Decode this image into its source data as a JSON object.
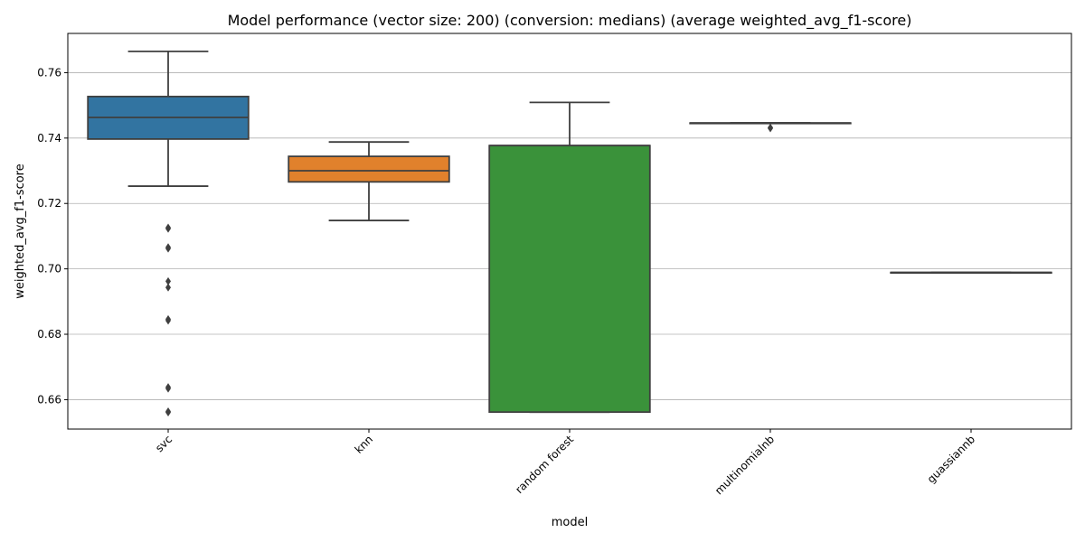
{
  "chart_data": {
    "type": "box",
    "title": "Model performance (vector size: 200) (conversion: medians) (average weighted_avg_f1-score)",
    "xlabel": "model",
    "ylabel": "weighted_avg_f1-score",
    "ylim": [
      0.651,
      0.772
    ],
    "yticks": [
      0.66,
      0.68,
      0.7,
      0.72,
      0.74,
      0.76
    ],
    "ytick_labels": [
      "0.66",
      "0.68",
      "0.70",
      "0.72",
      "0.74",
      "0.76"
    ],
    "grid": "horizontal",
    "categories": [
      "svc",
      "knn",
      "random forest",
      "multinomialnb",
      "guassiannb"
    ],
    "boxes": [
      {
        "label": "svc",
        "color": "#3274a1",
        "whislo": 0.7253,
        "q1": 0.7397,
        "med": 0.7463,
        "q3": 0.7527,
        "whishi": 0.7665,
        "fliers": [
          0.7126,
          0.7123,
          0.7066,
          0.7062,
          0.6962,
          0.6943,
          0.6846,
          0.6842,
          0.6638,
          0.6634,
          0.6564,
          0.6561
        ]
      },
      {
        "label": "knn",
        "color": "#e1812c",
        "whislo": 0.7148,
        "q1": 0.7266,
        "med": 0.73,
        "q3": 0.7344,
        "whishi": 0.7388,
        "fliers": []
      },
      {
        "label": "random forest",
        "color": "#3a923a",
        "whislo": 0.6562,
        "q1": 0.6562,
        "med": 0.7377,
        "q3": 0.7377,
        "whishi": 0.7509,
        "fliers": []
      },
      {
        "label": "multinomialnb",
        "color": "#c03d3e",
        "whislo": 0.7446,
        "q1": 0.7446,
        "med": 0.7446,
        "q3": 0.7446,
        "whishi": 0.7446,
        "fliers": [
          0.7432,
          0.743
        ]
      },
      {
        "label": "guassiannb",
        "color": "#9372b2",
        "whislo": 0.6989,
        "q1": 0.6989,
        "med": 0.6989,
        "q3": 0.6989,
        "whishi": 0.6989,
        "fliers": []
      }
    ]
  }
}
